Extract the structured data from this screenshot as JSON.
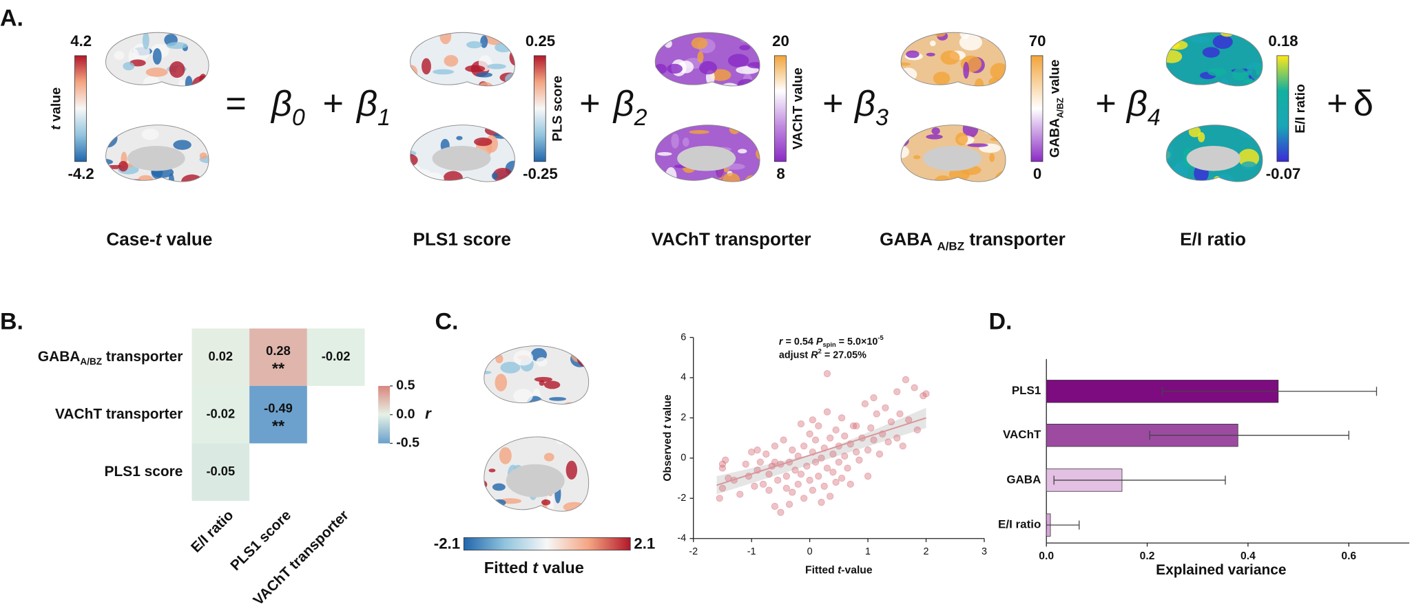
{
  "panel_labels": [
    "A.",
    "B.",
    "C.",
    "D."
  ],
  "panel_a": {
    "equals": "=",
    "plus": "+",
    "delta": "δ",
    "coefficients": [
      [
        {
          "text": "β"
        },
        {
          "text": "0",
          "style": "sub"
        }
      ],
      [
        {
          "text": "β"
        },
        {
          "text": "1",
          "style": "sub"
        }
      ],
      [
        {
          "text": "β"
        },
        {
          "text": "2",
          "style": "sub"
        }
      ],
      [
        {
          "text": "β"
        },
        {
          "text": "3",
          "style": "sub"
        }
      ],
      [
        {
          "text": "β"
        },
        {
          "text": "4",
          "style": "sub"
        }
      ]
    ],
    "maps": [
      {
        "caption": [
          {
            "text": "Case-"
          },
          {
            "text": "t",
            "style": "italic"
          },
          {
            "text": " value"
          }
        ],
        "colorbar": {
          "title": [
            {
              "text": "t",
              "style": "italic"
            },
            {
              "text": " value"
            }
          ],
          "max": 4.2,
          "min": -4.2,
          "colors": [
            "#2166ac",
            "#92c5de",
            "#f7f7f7",
            "#f4a582",
            "#b2182b"
          ]
        },
        "surface": "#ecebeb"
      },
      {
        "caption": [
          {
            "text": "PLS1 score"
          }
        ],
        "colorbar": {
          "title": [
            {
              "text": "PLS score"
            }
          ],
          "max": 0.25,
          "min": -0.25,
          "colors": [
            "#2166ac",
            "#92c5de",
            "#f7f7f7",
            "#f4a582",
            "#b2182b"
          ]
        },
        "surface": "#e9eef2"
      },
      {
        "caption": [
          {
            "text": "VAChT transporter"
          }
        ],
        "colorbar": {
          "title": [
            {
              "text": "VAChT value"
            }
          ],
          "max": 20,
          "min": 8,
          "colors": [
            "#8a2bc4",
            "#c08ae0",
            "#ffffff",
            "#f2a43a"
          ]
        },
        "surface": "#a660d0"
      },
      {
        "caption": [
          {
            "text": "GABA "
          },
          {
            "text": "A/BZ",
            "style": "sub"
          },
          {
            "text": " transporter"
          }
        ],
        "colorbar": {
          "title": [
            {
              "text": "GABA"
            },
            {
              "text": "A/BZ",
              "style": "sub"
            },
            {
              "text": " value"
            }
          ],
          "max": 70,
          "min": 0,
          "colors": [
            "#8a2bc4",
            "#ffffff",
            "#f2a43a"
          ]
        },
        "surface": "#edc592"
      },
      {
        "caption": [
          {
            "text": "E/I ratio"
          }
        ],
        "colorbar": {
          "title": [
            {
              "text": "E/I ratio"
            }
          ],
          "max": 0.18,
          "min": -0.07,
          "colors": [
            "#3a2bd6",
            "#1aa6b7",
            "#12b0a0",
            "#ffe81a"
          ]
        },
        "surface": "#17a3a8"
      }
    ]
  },
  "panel_c": {
    "caption": [
      {
        "text": "Fitted "
      },
      {
        "text": "t",
        "style": "italic"
      },
      {
        "text": " value"
      }
    ],
    "colorbar": {
      "min": -2.1,
      "max": 2.1,
      "colors": [
        "#2166ac",
        "#92c5de",
        "#f7f7f7",
        "#f4a582",
        "#b2182b"
      ]
    },
    "surface": "#ecebeb"
  },
  "chart_data": [
    {
      "type": "heatmap",
      "rows": [
        [
          {
            "text": "GABA"
          },
          {
            "text": "A/BZ",
            "style": "sub"
          },
          {
            "text": " transporter"
          }
        ],
        [
          {
            "text": "VAChT transporter"
          }
        ],
        [
          {
            "text": "PLS1 score"
          }
        ]
      ],
      "columns": [
        "E/I ratio",
        "PLS1 score",
        "VAChT transporter"
      ],
      "values": [
        [
          0.02,
          0.28,
          -0.02
        ],
        [
          -0.02,
          -0.49,
          null
        ],
        [
          -0.05,
          null,
          null
        ]
      ],
      "significance": [
        [
          null,
          "**",
          null
        ],
        [
          null,
          "**",
          null
        ],
        [
          null,
          null,
          null
        ]
      ],
      "colorscale": [
        "#6a9fcc",
        "#e6f2e6",
        "#d9857e"
      ],
      "zlim": [
        -0.5,
        0.5
      ],
      "zticks": [
        0.5,
        {
          "value": 0,
          "label": "0.0"
        },
        -0.5
      ],
      "zlabel": "r"
    },
    {
      "type": "scatter",
      "x": [
        -1.55,
        -1.5,
        -1.5,
        -1.45,
        -1.4,
        -1.3,
        -1.2,
        -1.1,
        -1.05,
        -1.0,
        -0.95,
        -0.9,
        -0.85,
        -0.8,
        -0.75,
        -0.7,
        -0.7,
        -0.65,
        -0.6,
        -0.6,
        -0.55,
        -0.5,
        -0.5,
        -0.45,
        -0.4,
        -0.4,
        -0.35,
        -0.35,
        -0.3,
        -0.3,
        -0.25,
        -0.2,
        -0.2,
        -0.15,
        -0.15,
        -0.1,
        -0.1,
        -0.05,
        0.0,
        0.0,
        0.05,
        0.05,
        0.1,
        0.1,
        0.15,
        0.15,
        0.2,
        0.2,
        0.25,
        0.25,
        0.3,
        0.3,
        0.35,
        0.35,
        0.4,
        0.4,
        0.45,
        0.45,
        0.5,
        0.5,
        0.55,
        0.55,
        0.6,
        0.6,
        0.65,
        0.7,
        0.7,
        0.75,
        0.8,
        0.85,
        0.9,
        0.95,
        1.0,
        1.0,
        1.05,
        1.1,
        1.15,
        1.2,
        1.25,
        1.3,
        1.35,
        1.4,
        1.5,
        1.5,
        1.55,
        1.6,
        1.65,
        1.7,
        1.8,
        1.85,
        1.95,
        2.0,
        -1.5,
        -0.9,
        0.3,
        0.8,
        1.1,
        -0.6,
        0.05
      ],
      "y": [
        -2.0,
        -1.5,
        -0.5,
        -0.1,
        -1.0,
        -1.1,
        -1.8,
        -0.3,
        -0.9,
        0.3,
        -1.4,
        -0.6,
        -0.2,
        -1.3,
        0.2,
        -0.8,
        -1.6,
        -0.4,
        0.6,
        -2.4,
        -1.1,
        -0.3,
        -2.7,
        0.9,
        -0.9,
        -1.5,
        -0.2,
        -2.3,
        0.4,
        -1.7,
        -0.6,
        0.1,
        -1.3,
        1.7,
        -0.8,
        -2.0,
        0.6,
        -0.4,
        1.2,
        -1.1,
        0.3,
        -1.6,
        -0.2,
        0.9,
        -0.9,
        1.6,
        0.0,
        -2.2,
        0.5,
        -1.4,
        4.2,
        -0.5,
        1.0,
        -1.9,
        0.2,
        -0.7,
        1.4,
        -1.2,
        0.6,
        -0.2,
        2.0,
        -1.0,
        0.1,
        1.1,
        -0.5,
        0.7,
        -1.3,
        1.6,
        0.3,
        -0.1,
        1.0,
        2.7,
        0.4,
        -0.9,
        1.5,
        0.9,
        2.2,
        0.2,
        1.2,
        2.5,
        0.8,
        1.8,
        3.3,
        1.0,
        2.2,
        0.6,
        3.9,
        1.9,
        3.5,
        1.4,
        3.1,
        3.2,
        -0.3,
        0.4,
        2.3,
        1.6,
        3.0,
        -0.2,
        1.9
      ],
      "color": "#d46a73",
      "fit": {
        "x": [
          -1.6,
          2.0
        ],
        "y": [
          -1.35,
          2.0
        ],
        "color": "#d9959a"
      },
      "band": {
        "x": [
          -1.6,
          0.2,
          2.0
        ],
        "upper": [
          -0.9,
          0.3,
          2.5
        ],
        "lower": [
          -1.8,
          -0.15,
          1.5
        ],
        "color": "#cfcfcf"
      },
      "xlim": [
        -2,
        3
      ],
      "ylim": [
        -4,
        6
      ],
      "xticks": [
        -2,
        -1,
        0,
        1,
        2,
        3
      ],
      "yticks": [
        -4,
        -2,
        0,
        2,
        4,
        6
      ],
      "xlabel": [
        {
          "text": "Fitted "
        },
        {
          "text": "t",
          "style": "italic"
        },
        {
          "text": "-value"
        }
      ],
      "ylabel": [
        {
          "text": "Observed "
        },
        {
          "text": "t",
          "style": "italic"
        },
        {
          "text": " value"
        }
      ],
      "annotation": [
        [
          {
            "text": "r",
            "style": "italic"
          },
          {
            "text": " = 0.54   "
          },
          {
            "text": "P",
            "style": "italic"
          },
          {
            "text": "spin",
            "style": "sub"
          },
          {
            "text": " = 5.0×10"
          },
          {
            "text": "-5",
            "style": "sup"
          }
        ],
        [
          {
            "text": "adjust "
          },
          {
            "text": "R",
            "style": "italic"
          },
          {
            "text": "2",
            "style": "sup"
          },
          {
            "text": " = 27.05%"
          }
        ]
      ]
    },
    {
      "type": "bar",
      "orientation": "horizontal",
      "categories": [
        "PLS1",
        "VAChT",
        "GABA",
        "E/I ratio"
      ],
      "values": [
        0.46,
        0.38,
        0.15,
        0.008
      ],
      "error_low": [
        0.23,
        0.205,
        0.015,
        0.0
      ],
      "error_high": [
        0.655,
        0.6,
        0.355,
        0.065
      ],
      "colors": [
        "#7d0c80",
        "#9c4ba1",
        "#e3c0e4",
        "#d8a6da"
      ],
      "xlim": [
        0,
        0.72
      ],
      "xticks": [
        {
          "value": 0,
          "label": "0.0"
        },
        0.2,
        0.4,
        0.6
      ],
      "xlabel": "Explained variance"
    }
  ]
}
